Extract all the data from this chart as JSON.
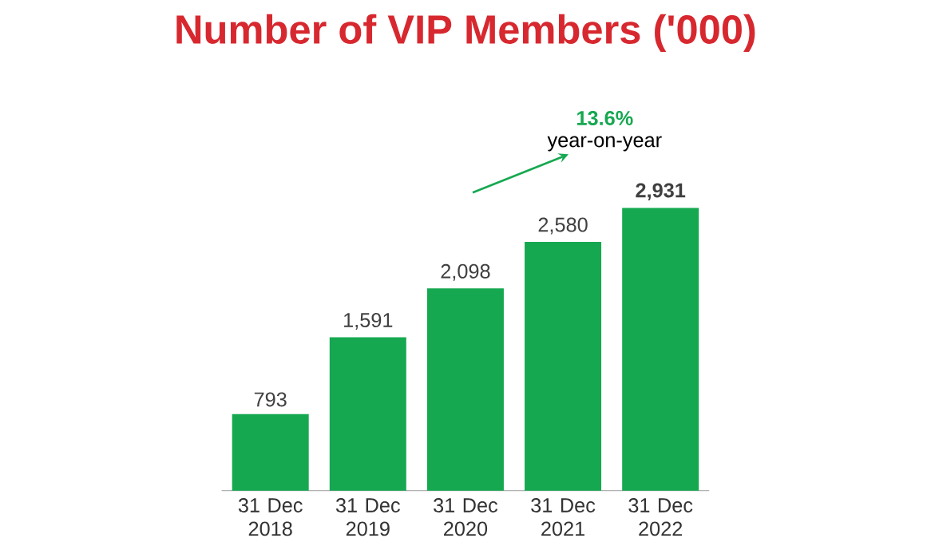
{
  "chart_data": {
    "type": "bar",
    "title": "Number of VIP Members ('000)",
    "categories": [
      "31 Dec 2018",
      "31 Dec 2019",
      "31 Dec 2020",
      "31 Dec 2021",
      "31 Dec 2022"
    ],
    "values": [
      793,
      1591,
      2098,
      2580,
      2931
    ],
    "value_labels": [
      "793",
      "1,591",
      "2,098",
      "2,580",
      "**2,931**"
    ],
    "color": "#16a851",
    "annotations": [
      "13.6%",
      "year-on-year"
    ],
    "data_labels": false
  }
}
